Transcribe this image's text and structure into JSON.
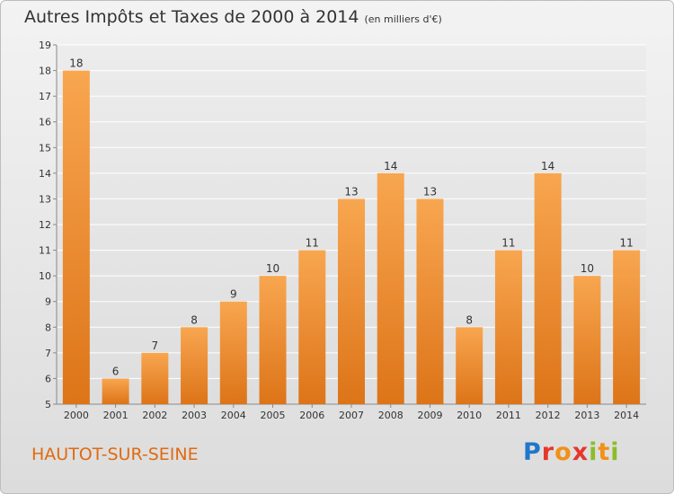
{
  "title": "Autres Impôts et Taxes de 2000 à 2014",
  "subtitle": "(en milliers d'€)",
  "commune": "HAUTOT-SUR-SEINE",
  "logo": {
    "letters": [
      "P",
      "r",
      "o",
      "x",
      "i",
      "t",
      "i"
    ],
    "colors": [
      "#1f77c9",
      "#e5372c",
      "#f29018",
      "#e5372c",
      "#8bbd2a",
      "#f29018",
      "#8bbd2a"
    ]
  },
  "colors": {
    "bar_light": "#f8a650",
    "bar_dark": "#dd7418",
    "accent": "#e06a10"
  },
  "chart_data": {
    "type": "bar",
    "categories": [
      "2000",
      "2001",
      "2002",
      "2003",
      "2004",
      "2005",
      "2006",
      "2007",
      "2008",
      "2009",
      "2010",
      "2011",
      "2012",
      "2013",
      "2014"
    ],
    "values": [
      18,
      6,
      7,
      8,
      9,
      10,
      11,
      13,
      14,
      13,
      8,
      11,
      14,
      10,
      11
    ],
    "title": "Autres Impôts et Taxes de 2000 à 2014",
    "subtitle": "(en milliers d'€)",
    "ylim": [
      5,
      19
    ],
    "yticks": [
      5,
      6,
      7,
      8,
      9,
      10,
      11,
      12,
      13,
      14,
      15,
      16,
      17,
      18,
      19
    ],
    "grid": true,
    "data_labels": true
  }
}
